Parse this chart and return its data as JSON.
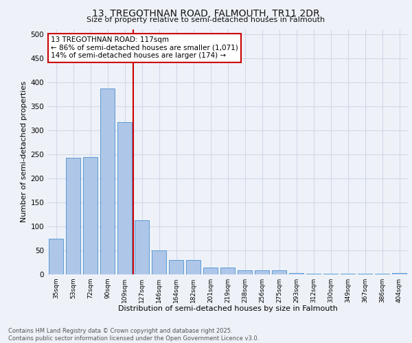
{
  "title_line1": "13, TREGOTHNAN ROAD, FALMOUTH, TR11 2DR",
  "title_line2": "Size of property relative to semi-detached houses in Falmouth",
  "xlabel": "Distribution of semi-detached houses by size in Falmouth",
  "ylabel": "Number of semi-detached properties",
  "categories": [
    "35sqm",
    "53sqm",
    "72sqm",
    "90sqm",
    "109sqm",
    "127sqm",
    "146sqm",
    "164sqm",
    "182sqm",
    "201sqm",
    "219sqm",
    "238sqm",
    "256sqm",
    "275sqm",
    "293sqm",
    "312sqm",
    "330sqm",
    "349sqm",
    "367sqm",
    "386sqm",
    "404sqm"
  ],
  "values": [
    74,
    243,
    244,
    387,
    316,
    113,
    50,
    30,
    30,
    14,
    14,
    8,
    8,
    8,
    3,
    2,
    2,
    2,
    1,
    1,
    3
  ],
  "bar_color": "#aec6e8",
  "bar_edge_color": "#5b9bd5",
  "vline_x": 5,
  "vline_color": "#cc0000",
  "annotation_text": "13 TREGOTHNAN ROAD: 117sqm\n← 86% of semi-detached houses are smaller (1,071)\n14% of semi-detached houses are larger (174) →",
  "annotation_box_color": "#ffffff",
  "annotation_box_edge": "#cc0000",
  "ylim": [
    0,
    510
  ],
  "yticks": [
    0,
    50,
    100,
    150,
    200,
    250,
    300,
    350,
    400,
    450,
    500
  ],
  "grid_color": "#d0d8e8",
  "footer_line1": "Contains HM Land Registry data © Crown copyright and database right 2025.",
  "footer_line2": "Contains public sector information licensed under the Open Government Licence v3.0.",
  "background_color": "#eef2f8"
}
